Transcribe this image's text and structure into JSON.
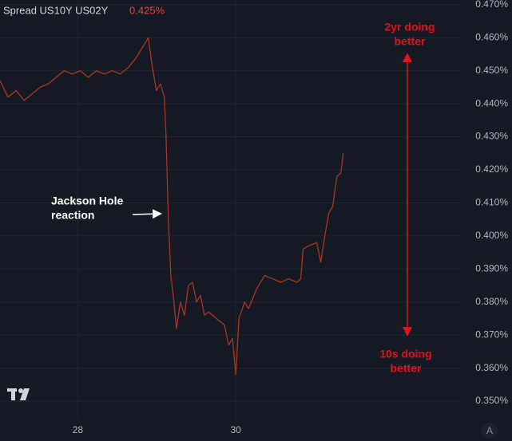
{
  "chart_data": {
    "type": "line",
    "last_value_label": "0.425%",
    "series": [
      {
        "name": "Spread US10Y US02Y",
        "color": "#a8351f",
        "values": [
          0.447,
          0.442,
          0.444,
          0.441,
          0.443,
          0.445,
          0.446,
          0.448,
          0.45,
          0.449,
          0.45,
          0.448,
          0.45,
          0.449,
          0.45,
          0.449,
          0.451,
          0.454,
          0.458,
          0.46,
          0.451,
          0.444,
          0.446,
          0.442,
          0.43,
          0.405,
          0.388,
          0.382,
          0.372,
          0.38,
          0.376,
          0.385,
          0.386,
          0.38,
          0.382,
          0.376,
          0.377,
          0.375,
          0.373,
          0.367,
          0.369,
          0.358,
          0.375,
          0.38,
          0.378,
          0.384,
          0.388,
          0.387,
          0.386,
          0.387,
          0.386,
          0.387,
          0.396,
          0.397,
          0.398,
          0.392,
          0.4,
          0.407,
          0.409,
          0.418,
          0.419,
          0.425
        ]
      }
    ],
    "x": [
      27.015,
      27.117,
      27.218,
      27.32,
      27.421,
      27.523,
      27.624,
      27.726,
      27.827,
      27.929,
      28.03,
      28.132,
      28.234,
      28.335,
      28.437,
      28.538,
      28.64,
      28.741,
      28.843,
      28.893,
      28.944,
      28.995,
      29.046,
      29.096,
      29.117,
      29.147,
      29.178,
      29.208,
      29.249,
      29.299,
      29.35,
      29.401,
      29.452,
      29.503,
      29.553,
      29.604,
      29.655,
      29.756,
      29.858,
      29.909,
      29.959,
      30.0,
      30.041,
      30.112,
      30.162,
      30.264,
      30.365,
      30.467,
      30.569,
      30.67,
      30.772,
      30.822,
      30.853,
      30.924,
      31.025,
      31.076,
      31.127,
      31.178,
      31.228,
      31.279,
      31.33,
      31.36
    ],
    "xlim": [
      27.015,
      32.85
    ],
    "xticks": [
      28,
      30
    ],
    "ylim": [
      0.3447,
      0.4714
    ],
    "yticks": [
      {
        "value": 0.47,
        "label": "0.470%"
      },
      {
        "value": 0.46,
        "label": "0.460%"
      },
      {
        "value": 0.45,
        "label": "0.450%"
      },
      {
        "value": 0.44,
        "label": "0.440%"
      },
      {
        "value": 0.43,
        "label": "0.430%"
      },
      {
        "value": 0.42,
        "label": "0.420%"
      },
      {
        "value": 0.41,
        "label": "0.410%"
      },
      {
        "value": 0.4,
        "label": "0.400%"
      },
      {
        "value": 0.39,
        "label": "0.390%"
      },
      {
        "value": 0.38,
        "label": "0.380%"
      },
      {
        "value": 0.37,
        "label": "0.370%"
      },
      {
        "value": 0.36,
        "label": "0.360%"
      },
      {
        "value": 0.35,
        "label": "0.350%"
      }
    ],
    "grid": true,
    "annotations": [
      {
        "text": [
          "Jackson Hole",
          "reaction"
        ]
      },
      {
        "text": [
          "2yr doing",
          "better"
        ]
      },
      {
        "text": [
          "10s doing",
          "better"
        ]
      }
    ],
    "autoscale_button": "A"
  }
}
